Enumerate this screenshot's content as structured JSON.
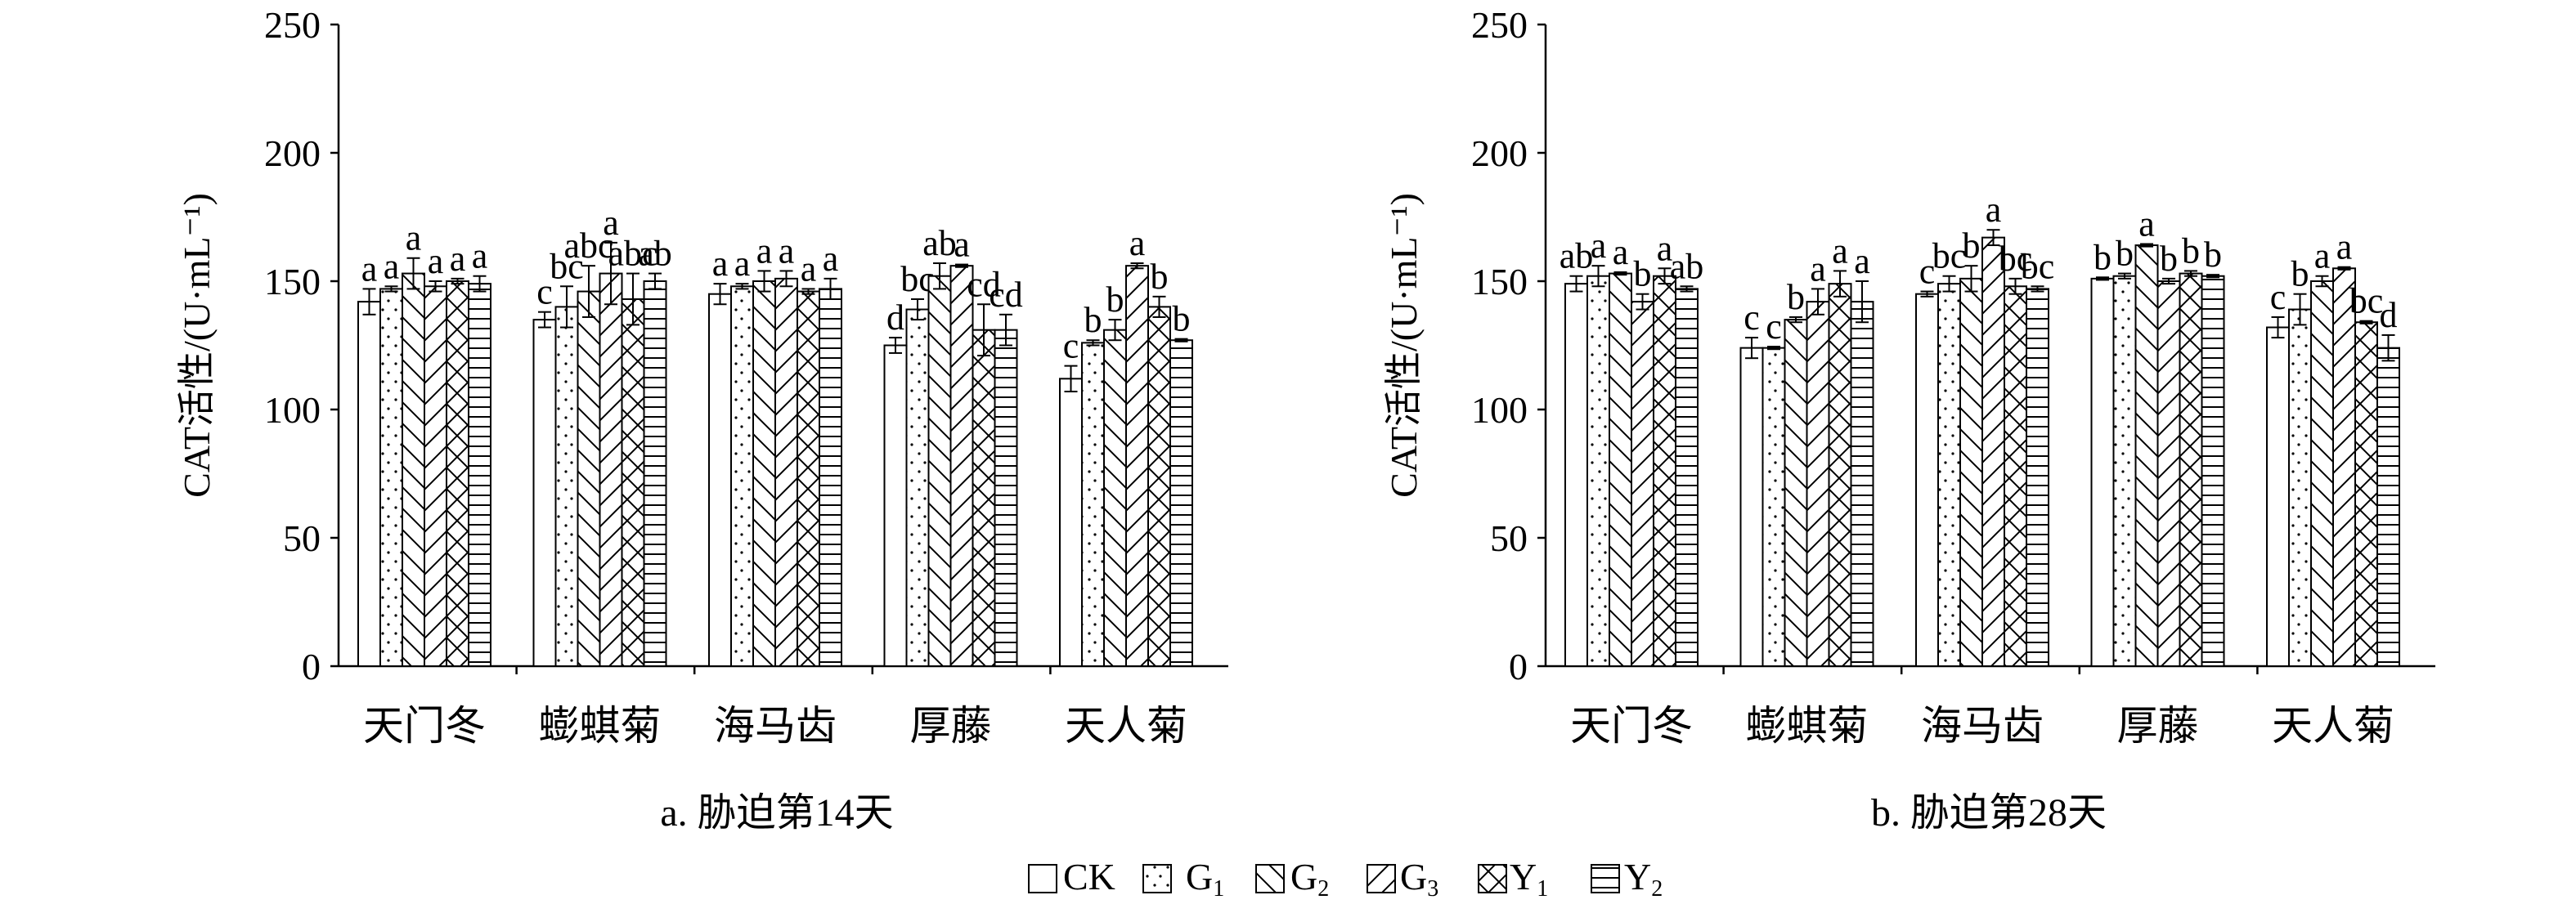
{
  "legend": {
    "items": [
      {
        "pattern": "blank",
        "label": "CK",
        "sub": ""
      },
      {
        "pattern": "dots",
        "label": "G",
        "sub": "1"
      },
      {
        "pattern": "backslash",
        "label": "G",
        "sub": "2"
      },
      {
        "pattern": "slash",
        "label": "G",
        "sub": "3"
      },
      {
        "pattern": "cross",
        "label": "Y",
        "sub": "1"
      },
      {
        "pattern": "hlines",
        "label": "Y",
        "sub": "2"
      }
    ]
  },
  "chart_data": [
    {
      "type": "bar",
      "caption": "a. 胁迫第14天",
      "ylabel": "CAT活性/(U·mL⁻¹)",
      "ylim": [
        0,
        250
      ],
      "yticks": [
        0,
        50,
        100,
        150,
        200,
        250
      ],
      "categories": [
        "天门冬",
        "蟛蜞菊",
        "海马齿",
        "厚藤",
        "天人菊"
      ],
      "series": [
        {
          "name": "CK",
          "values": [
            142,
            135,
            145,
            125,
            112
          ],
          "errors": [
            5,
            3,
            4,
            3,
            5
          ],
          "letters": [
            "a",
            "c",
            "a",
            "d",
            "c"
          ]
        },
        {
          "name": "G1",
          "values": [
            147,
            140,
            148,
            139,
            126
          ],
          "errors": [
            1,
            8,
            1,
            4,
            1
          ],
          "letters": [
            "a",
            "bc",
            "a",
            "bc",
            "b"
          ]
        },
        {
          "name": "G2",
          "values": [
            153,
            146,
            150,
            152,
            131
          ],
          "errors": [
            6,
            10,
            4,
            5,
            4
          ],
          "letters": [
            "a",
            "abc",
            "a",
            "ab",
            "b"
          ]
        },
        {
          "name": "G3",
          "values": [
            148,
            153,
            151,
            156,
            156
          ],
          "errors": [
            2,
            12,
            3,
            0.5,
            1
          ],
          "letters": [
            "a",
            "a",
            "a",
            "a",
            "a"
          ]
        },
        {
          "name": "Y1",
          "values": [
            150,
            143,
            146,
            131,
            140
          ],
          "errors": [
            1,
            10,
            1,
            10,
            4
          ],
          "letters": [
            "a",
            "abc",
            "a",
            "cd",
            "b"
          ]
        },
        {
          "name": "Y2",
          "values": [
            149,
            150,
            147,
            131,
            127
          ],
          "errors": [
            3,
            3,
            4,
            6,
            0.5
          ],
          "letters": [
            "a",
            "ab",
            "a",
            "cd",
            "b"
          ]
        }
      ]
    },
    {
      "type": "bar",
      "caption": "b. 胁迫第28天",
      "ylabel": "CAT活性/(U·mL⁻¹)",
      "ylim": [
        0,
        250
      ],
      "yticks": [
        0,
        50,
        100,
        150,
        200,
        250
      ],
      "categories": [
        "天门冬",
        "蟛蜞菊",
        "海马齿",
        "厚藤",
        "天人菊"
      ],
      "series": [
        {
          "name": "CK",
          "values": [
            149,
            124,
            145,
            151,
            132
          ],
          "errors": [
            3,
            4,
            1,
            0.5,
            4
          ],
          "letters": [
            "ab",
            "c",
            "c",
            "b",
            "c"
          ]
        },
        {
          "name": "G1",
          "values": [
            152,
            124,
            149,
            152,
            139
          ],
          "errors": [
            4,
            0.5,
            3,
            1,
            6
          ],
          "letters": [
            "a",
            "c",
            "bc",
            "b",
            "b"
          ]
        },
        {
          "name": "G2",
          "values": [
            153,
            135,
            151,
            164,
            150
          ],
          "errors": [
            0.5,
            1,
            5,
            0.5,
            2
          ],
          "letters": [
            "a",
            "b",
            "b",
            "a",
            "a"
          ]
        },
        {
          "name": "G3",
          "values": [
            142,
            142,
            167,
            150,
            155
          ],
          "errors": [
            3,
            5,
            3,
            1,
            0.5
          ],
          "letters": [
            "b",
            "a",
            "a",
            "b",
            "a"
          ]
        },
        {
          "name": "Y1",
          "values": [
            152,
            149,
            148,
            153,
            134
          ],
          "errors": [
            3,
            5,
            3,
            1,
            0.5
          ],
          "letters": [
            "a",
            "a",
            "bc",
            "b",
            "bc"
          ]
        },
        {
          "name": "Y2",
          "values": [
            147,
            142,
            147,
            152,
            124
          ],
          "errors": [
            1,
            8,
            1,
            0.5,
            5
          ],
          "letters": [
            "ab",
            "a",
            "bc",
            "b",
            "d"
          ]
        }
      ]
    }
  ]
}
